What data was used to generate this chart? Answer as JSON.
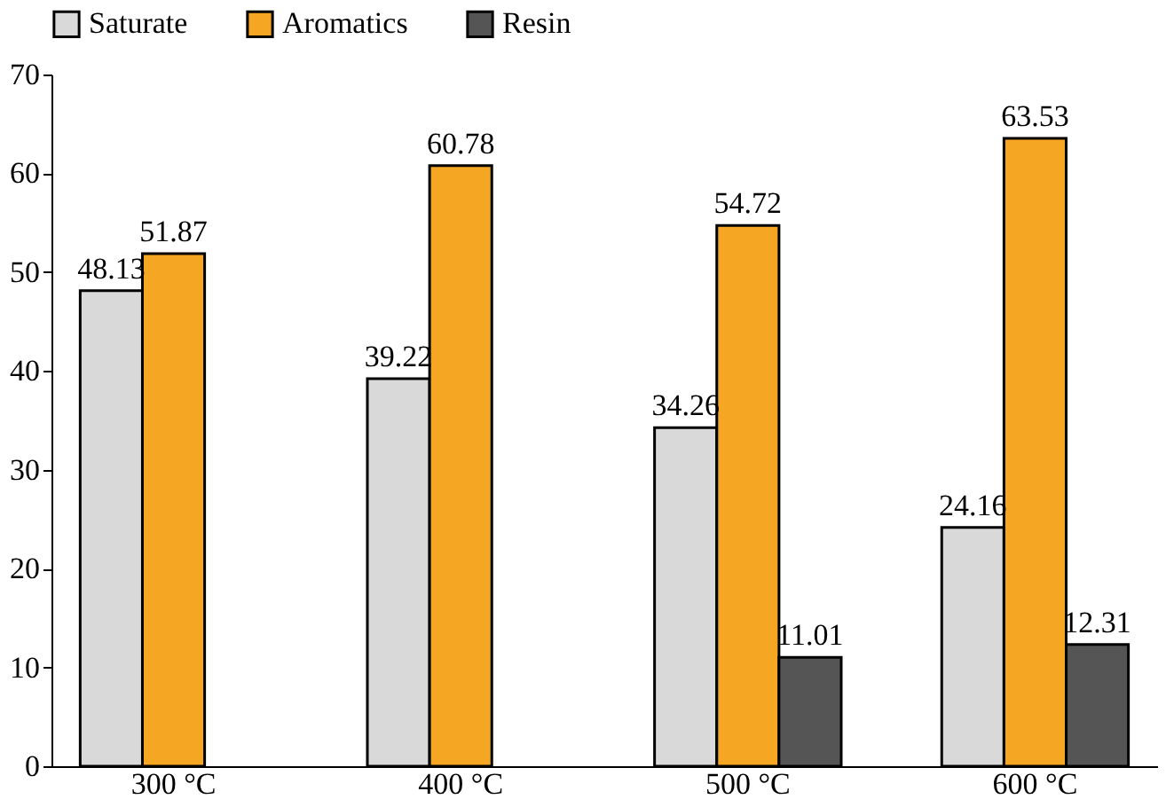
{
  "chart_data": {
    "type": "bar",
    "categories": [
      "300 °C",
      "400 °C",
      "500 °C",
      "600 °C"
    ],
    "series": [
      {
        "name": "Saturate",
        "color": "#d9d9d9",
        "values": [
          48.13,
          39.22,
          34.26,
          24.16
        ]
      },
      {
        "name": "Aromatics",
        "color": "#f5a623",
        "values": [
          51.87,
          60.78,
          54.72,
          63.53
        ]
      },
      {
        "name": "Resin",
        "color": "#555555",
        "values": [
          null,
          null,
          11.01,
          12.31
        ]
      }
    ],
    "ylim": [
      0,
      70
    ],
    "yticks": [
      0,
      10,
      20,
      30,
      40,
      50,
      60,
      70
    ],
    "grid": false,
    "legend": "top",
    "data_labels": true
  }
}
